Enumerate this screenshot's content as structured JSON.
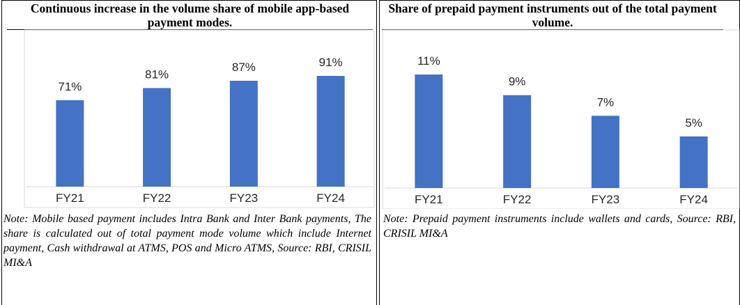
{
  "chart_data": [
    {
      "type": "bar",
      "title": "Continuous increase in the volume share of mobile app-based payment modes.",
      "categories": [
        "FY21",
        "FY22",
        "FY23",
        "FY24"
      ],
      "values": [
        71,
        81,
        87,
        91
      ],
      "value_labels": [
        "71%",
        "81%",
        "87%",
        "91%"
      ],
      "color": "#4472c4",
      "note": "Note: Mobile based payment includes Intra Bank and Inter Bank payments, The share is calculated out of total payment mode volume which include Internet payment, Cash withdrawal at ATMS, POS and Micro ATMS, Source: RBI, CRISIL MI&A"
    },
    {
      "type": "bar",
      "title": "Share of prepaid payment instruments out of the total payment volume.",
      "categories": [
        "FY21",
        "FY22",
        "FY23",
        "FY24"
      ],
      "values": [
        11,
        9,
        7,
        5
      ],
      "value_labels": [
        "11%",
        "9%",
        "7%",
        "5%"
      ],
      "color": "#4472c4",
      "note": "Note: Prepaid payment instruments include wallets and cards, Source: RBI, CRISIL MI&A"
    }
  ]
}
